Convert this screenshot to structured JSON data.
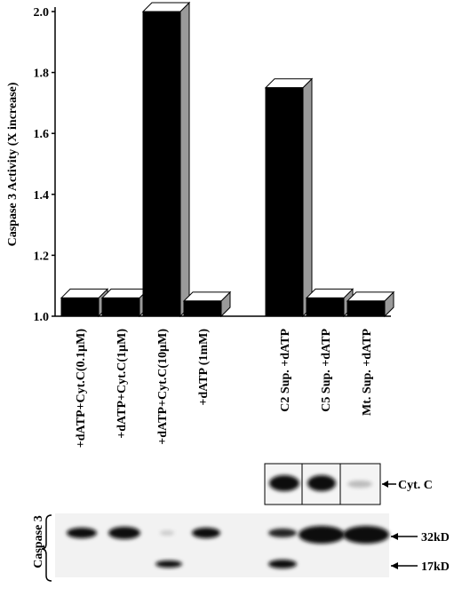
{
  "chart_data": {
    "type": "bar3d",
    "y_label": "Caspase 3 Activity (X increase)",
    "categories": [
      "+dATP+Cyt.C(0.1µM)",
      "+dATP+Cyt.C(1µM)",
      "+dATP+Cyt.C(10µM)",
      "+dATP  (1mM)",
      null,
      "C2 Sup. +dATP",
      "C5 Sup. +dATP",
      "Mt. Sup. +dATP"
    ],
    "values": [
      1.06,
      1.06,
      2.0,
      1.05,
      null,
      1.75,
      1.06,
      1.05
    ],
    "color": "#000000",
    "side_color": "#9a9a9a",
    "ylim": [
      1.0,
      2.0
    ],
    "yticks": [
      {
        "value": 1.0,
        "label": "1.0"
      },
      1.2,
      1.4,
      1.6,
      1.8,
      {
        "value": 2.0,
        "label": "2.0"
      }
    ],
    "blot_labels": {
      "cyt_c": "Cyt. C",
      "caspase3": "Caspase 3",
      "kd32": "32kD",
      "kd17": "17kD"
    }
  }
}
